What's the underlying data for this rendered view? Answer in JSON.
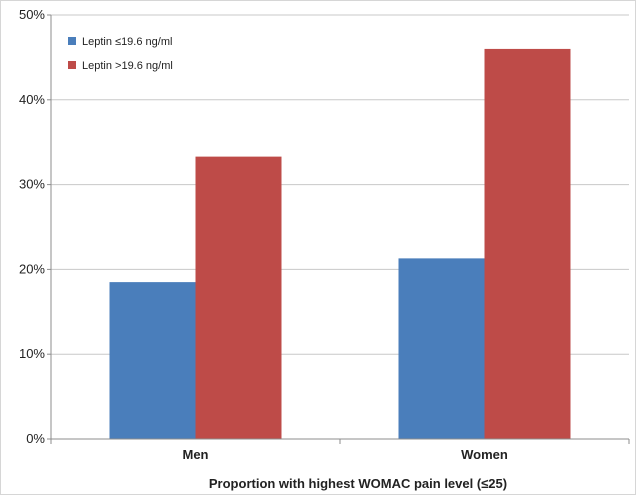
{
  "chart_data": {
    "type": "bar",
    "categories": [
      "Men",
      "Women"
    ],
    "series": [
      {
        "name": "Leptin ≤19.6 ng/ml",
        "color": "#4a7ebb",
        "values": [
          18.5,
          21.3
        ]
      },
      {
        "name": "Leptin >19.6 ng/ml",
        "color": "#be4b48",
        "values": [
          33.3,
          46.0
        ]
      }
    ],
    "xlabel": "Proportion with highest WOMAC pain level (≤25)",
    "ylabel": "",
    "ylim": [
      0,
      50
    ],
    "y_ticks": [
      {
        "value": 0,
        "label": "0%"
      },
      {
        "value": 10,
        "label": "10%"
      },
      {
        "value": 20,
        "label": "20%"
      },
      {
        "value": 30,
        "label": "30%"
      },
      {
        "value": 40,
        "label": "40%"
      },
      {
        "value": 50,
        "label": "50%"
      }
    ],
    "grid": true,
    "legend_position": "top-left"
  }
}
